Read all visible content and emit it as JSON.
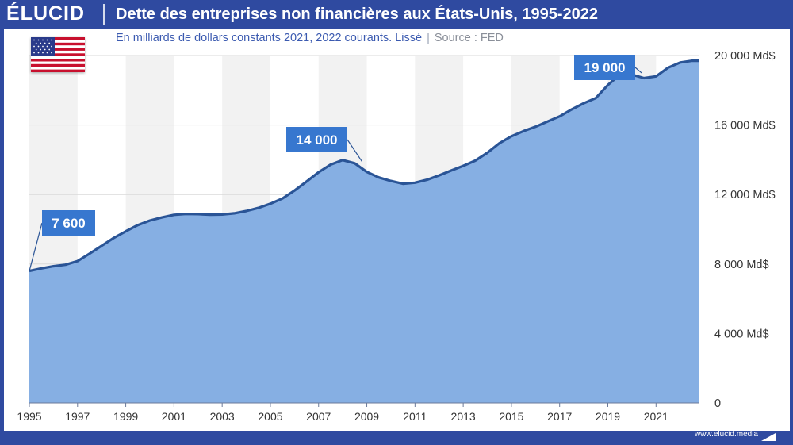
{
  "brand": {
    "logo": "ÉLUCID",
    "url": "www.elucid.media"
  },
  "title": "Dette des entreprises non financières aux États-Unis, 1995-2022",
  "subtitle": "En milliards de dollars constants 2021, 2022 courants. Lissé",
  "source": "Source : FED",
  "colors": {
    "frame": "#2f4aa0",
    "area_fill": "#86afe3",
    "line": "#2a5496",
    "callout": "#3777cf",
    "band": "#f2f2f2"
  },
  "icons": {
    "flag": "us-flag-icon",
    "footer": "elucid-mark-icon"
  },
  "chart_data": {
    "type": "area",
    "title": "Dette des entreprises non financières aux États-Unis, 1995-2022",
    "ylim": [
      0,
      20000
    ],
    "xlim": [
      1995,
      2022.8
    ],
    "y_ticks": [
      0,
      4000,
      8000,
      12000,
      16000,
      20000
    ],
    "y_tick_labels": [
      "0",
      "4 000 Md$",
      "8 000 Md$",
      "12 000 Md$",
      "16 000 Md$",
      "20 000 Md$"
    ],
    "x_ticks": [
      1995,
      1997,
      1999,
      2001,
      2003,
      2005,
      2007,
      2009,
      2011,
      2013,
      2015,
      2017,
      2019,
      2021
    ],
    "x_tick_labels": [
      "1995",
      "1997",
      "1999",
      "2001",
      "2003",
      "2005",
      "2007",
      "2009",
      "2011",
      "2013",
      "2015",
      "2017",
      "2019",
      "2021"
    ],
    "y_axis_position": "right",
    "series": [
      {
        "x": [
          1995,
          1995.5,
          1996,
          1996.5,
          1997,
          1997.5,
          1998,
          1998.5,
          1999,
          1999.5,
          2000,
          2000.5,
          2001,
          2001.5,
          2002,
          2002.5,
          2003,
          2003.5,
          2004,
          2004.5,
          2005,
          2005.5,
          2006,
          2006.5,
          2007,
          2007.5,
          2008,
          2008.5,
          2009,
          2009.5,
          2010,
          2010.5,
          2011,
          2011.5,
          2012,
          2012.5,
          2013,
          2013.5,
          2014,
          2014.5,
          2015,
          2015.5,
          2016,
          2016.5,
          2017,
          2017.5,
          2018,
          2018.5,
          2019,
          2019.5,
          2020,
          2020.5,
          2021,
          2021.5,
          2022,
          2022.5,
          2022.8
        ],
        "y": [
          7600,
          7750,
          7870,
          7960,
          8170,
          8600,
          9050,
          9500,
          9880,
          10240,
          10500,
          10680,
          10830,
          10880,
          10870,
          10840,
          10850,
          10920,
          11050,
          11230,
          11470,
          11770,
          12230,
          12750,
          13280,
          13720,
          13980,
          13800,
          13300,
          12980,
          12780,
          12620,
          12680,
          12850,
          13100,
          13380,
          13650,
          13950,
          14400,
          14950,
          15350,
          15650,
          15900,
          16200,
          16500,
          16900,
          17250,
          17550,
          18300,
          18900,
          18900,
          18700,
          18800,
          19300,
          19600,
          19700,
          19700
        ]
      }
    ],
    "annotations": [
      {
        "label": "7 600",
        "x": 1995,
        "y": 7600
      },
      {
        "label": "14 000",
        "x": 2008.8,
        "y": 13900
      },
      {
        "label": "19 000",
        "x": 2020.4,
        "y": 19000
      }
    ],
    "grid": true,
    "legend": "none"
  }
}
